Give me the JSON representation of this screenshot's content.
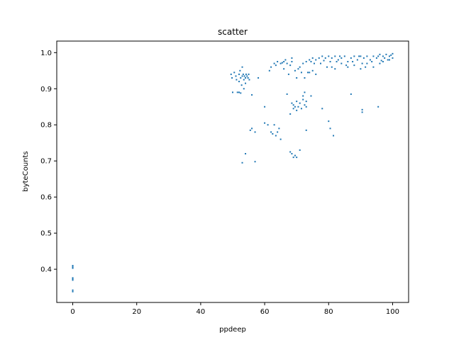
{
  "chart_data": {
    "type": "scatter",
    "title": "scatter",
    "xlabel": "ppdeep",
    "ylabel": "byteCounts",
    "xlim": [
      -5,
      105
    ],
    "ylim": [
      0.308,
      1.032
    ],
    "xticks": [
      0,
      20,
      40,
      60,
      80,
      100
    ],
    "yticks": [
      0.4,
      0.5,
      0.6,
      0.7,
      0.8,
      0.9,
      1.0
    ],
    "xtick_labels": [
      "0",
      "20",
      "40",
      "60",
      "80",
      "100"
    ],
    "ytick_labels": [
      "0.4",
      "0.5",
      "0.6",
      "0.7",
      "0.8",
      "0.9",
      "1.0"
    ],
    "grid": false,
    "marker_color": "#1f77b4",
    "series": [
      {
        "points": [
          [
            0,
            0.338
          ],
          [
            0,
            0.342
          ],
          [
            0,
            0.37
          ],
          [
            0,
            0.373
          ],
          [
            0,
            0.376
          ],
          [
            0,
            0.403
          ],
          [
            0,
            0.406
          ],
          [
            0,
            0.41
          ],
          [
            49.5,
            0.94
          ],
          [
            49.8,
            0.93
          ],
          [
            50,
            0.89
          ],
          [
            50.5,
            0.945
          ],
          [
            51,
            0.935
          ],
          [
            51.2,
            0.925
          ],
          [
            51.5,
            0.89
          ],
          [
            52,
            0.94
          ],
          [
            52,
            0.92
          ],
          [
            52.3,
            0.95
          ],
          [
            52.5,
            0.93
          ],
          [
            52.8,
            0.91
          ],
          [
            53,
            0.935
          ],
          [
            53,
            0.96
          ],
          [
            53.3,
            0.94
          ],
          [
            53.5,
            0.925
          ],
          [
            53.7,
            0.935
          ],
          [
            54,
            0.93
          ],
          [
            54.2,
            0.94
          ],
          [
            54.5,
            0.935
          ],
          [
            54.8,
            0.93
          ],
          [
            55,
            0.94
          ],
          [
            55.2,
            0.925
          ],
          [
            53,
            0.695
          ],
          [
            54,
            0.72
          ],
          [
            57,
            0.698
          ],
          [
            55.5,
            0.785
          ],
          [
            56,
            0.79
          ],
          [
            57,
            0.78
          ],
          [
            56,
            0.883
          ],
          [
            58,
            0.93
          ],
          [
            52,
            0.89
          ],
          [
            52.5,
            0.888
          ],
          [
            53.5,
            0.9
          ],
          [
            54,
            0.915
          ],
          [
            60,
            0.85
          ],
          [
            60,
            0.805
          ],
          [
            61,
            0.8
          ],
          [
            62,
            0.78
          ],
          [
            62.5,
            0.775
          ],
          [
            63,
            0.8
          ],
          [
            64,
            0.78
          ],
          [
            63.5,
            0.77
          ],
          [
            64.5,
            0.79
          ],
          [
            65,
            0.76
          ],
          [
            61.5,
            0.95
          ],
          [
            62,
            0.96
          ],
          [
            63,
            0.97
          ],
          [
            63.5,
            0.965
          ],
          [
            64,
            0.975
          ],
          [
            65,
            0.97
          ],
          [
            66,
            0.975
          ],
          [
            67,
            0.97
          ],
          [
            68,
            0.965
          ],
          [
            68.5,
            0.975
          ],
          [
            66,
            0.955
          ],
          [
            67.5,
            0.94
          ],
          [
            68,
            0.83
          ],
          [
            68.5,
            0.86
          ],
          [
            69,
            0.845
          ],
          [
            69,
            0.855
          ],
          [
            69.5,
            0.85
          ],
          [
            70,
            0.84
          ],
          [
            70,
            0.865
          ],
          [
            70.5,
            0.85
          ],
          [
            71,
            0.86
          ],
          [
            71.5,
            0.845
          ],
          [
            72,
            0.87
          ],
          [
            72,
            0.88
          ],
          [
            72.5,
            0.855
          ],
          [
            73,
            0.865
          ],
          [
            73,
            0.85
          ],
          [
            72.5,
            0.89
          ],
          [
            68,
            0.725
          ],
          [
            68.5,
            0.72
          ],
          [
            69,
            0.71
          ],
          [
            69.5,
            0.715
          ],
          [
            70,
            0.71
          ],
          [
            71,
            0.73
          ],
          [
            73,
            0.785
          ],
          [
            69.5,
            0.95
          ],
          [
            70.5,
            0.955
          ],
          [
            71,
            0.96
          ],
          [
            72,
            0.97
          ],
          [
            73,
            0.975
          ],
          [
            74,
            0.98
          ],
          [
            74.5,
            0.975
          ],
          [
            75,
            0.985
          ],
          [
            75.5,
            0.97
          ],
          [
            76,
            0.98
          ],
          [
            74,
            0.945
          ],
          [
            75,
            0.95
          ],
          [
            76,
            0.94
          ],
          [
            77,
            0.985
          ],
          [
            78,
            0.99
          ],
          [
            79,
            0.985
          ],
          [
            80,
            0.99
          ],
          [
            80.5,
            0.975
          ],
          [
            81,
            0.985
          ],
          [
            82,
            0.99
          ],
          [
            83,
            0.98
          ],
          [
            84,
            0.985
          ],
          [
            85,
            0.99
          ],
          [
            86,
            0.975
          ],
          [
            87,
            0.985
          ],
          [
            88,
            0.99
          ],
          [
            89,
            0.98
          ],
          [
            90,
            0.99
          ],
          [
            90.5,
            0.97
          ],
          [
            91,
            0.985
          ],
          [
            92,
            0.99
          ],
          [
            93,
            0.98
          ],
          [
            94,
            0.99
          ],
          [
            95,
            0.985
          ],
          [
            96,
            0.995
          ],
          [
            97,
            0.99
          ],
          [
            98,
            0.995
          ],
          [
            99,
            0.99
          ],
          [
            100,
            0.997
          ],
          [
            100,
            0.985
          ],
          [
            99.5,
            0.993
          ],
          [
            98.5,
            0.98
          ],
          [
            97.5,
            0.985
          ],
          [
            96.5,
            0.978
          ],
          [
            81,
            0.96
          ],
          [
            82,
            0.955
          ],
          [
            84,
            0.97
          ],
          [
            86,
            0.96
          ],
          [
            88,
            0.965
          ],
          [
            90,
            0.955
          ],
          [
            91.5,
            0.96
          ],
          [
            92,
            0.97
          ],
          [
            94,
            0.96
          ],
          [
            96,
            0.97
          ],
          [
            87,
            0.885
          ],
          [
            90.5,
            0.835
          ],
          [
            90.5,
            0.842
          ],
          [
            95.5,
            0.85
          ],
          [
            78,
            0.845
          ],
          [
            80,
            0.81
          ],
          [
            80.5,
            0.79
          ],
          [
            81.5,
            0.77
          ],
          [
            67,
            0.885
          ],
          [
            74.5,
            0.88
          ],
          [
            73.5,
            0.945
          ],
          [
            72.5,
            0.93
          ],
          [
            71.5,
            0.945
          ],
          [
            70,
            0.93
          ],
          [
            66.5,
            0.98
          ],
          [
            65.5,
            0.972
          ],
          [
            68.5,
            0.985
          ],
          [
            77.5,
            0.97
          ],
          [
            78.5,
            0.978
          ],
          [
            79.5,
            0.96
          ],
          [
            82.5,
            0.975
          ],
          [
            83.5,
            0.99
          ],
          [
            85.5,
            0.965
          ],
          [
            87.5,
            0.975
          ],
          [
            89.5,
            0.99
          ],
          [
            93.5,
            0.975
          ],
          [
            95.5,
            0.99
          ],
          [
            97,
            0.975
          ],
          [
            99,
            0.98
          ]
        ]
      }
    ]
  }
}
